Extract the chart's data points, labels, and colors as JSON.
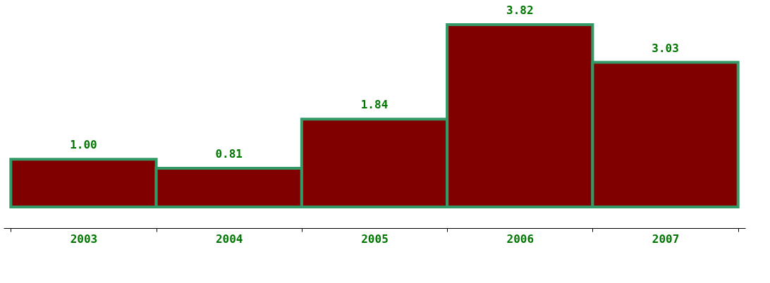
{
  "chart_data": {
    "type": "bar",
    "categories": [
      "2003",
      "2004",
      "2005",
      "2006",
      "2007"
    ],
    "values": [
      1.0,
      0.81,
      1.84,
      3.82,
      3.03
    ],
    "value_labels": [
      "1.00",
      "0.81",
      "1.84",
      "3.82",
      "3.03"
    ],
    "color": "#800000",
    "tick_labels": "x"
  }
}
